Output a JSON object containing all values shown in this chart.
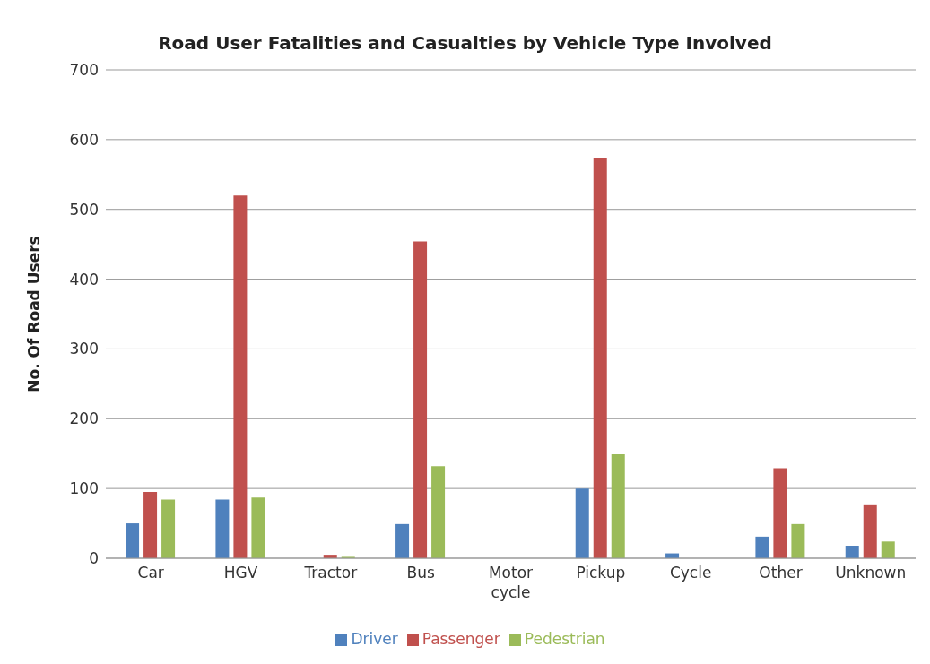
{
  "chart_data": {
    "type": "bar",
    "title": "Road User Fatalities and Casualties by Vehicle Type Involved",
    "ylabel": "No. Of Road Users",
    "categories": [
      "Car",
      "HGV",
      "Tractor",
      "Bus",
      "Motor cycle",
      "Pickup",
      "Cycle",
      "Other",
      "Unknown"
    ],
    "series": [
      {
        "name": "Driver",
        "color": "#4f81bd",
        "values": [
          50,
          84,
          0,
          49,
          0,
          100,
          7,
          31,
          18
        ]
      },
      {
        "name": "Passenger",
        "color": "#c0504d",
        "values": [
          95,
          520,
          5,
          454,
          0,
          574,
          0,
          129,
          76
        ]
      },
      {
        "name": "Pedestrian",
        "color": "#9bbb59",
        "values": [
          84,
          87,
          2,
          132,
          0,
          149,
          0,
          49,
          24
        ]
      }
    ],
    "ylim": [
      0,
      700
    ],
    "yticks": [
      0,
      100,
      200,
      300,
      400,
      500,
      600,
      700
    ],
    "grid": "y",
    "legend": "bottom"
  }
}
